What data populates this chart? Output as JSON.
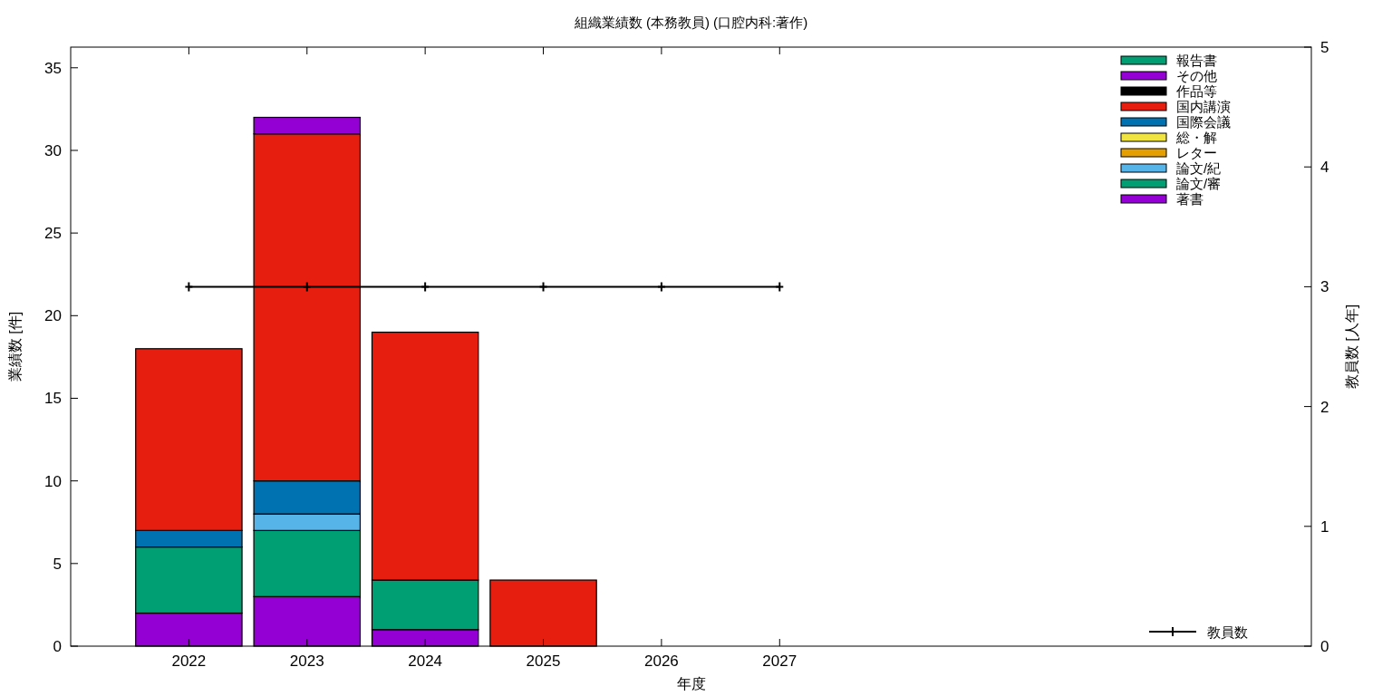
{
  "chart_data": {
    "type": "bar",
    "stacked": true,
    "title": "組織業績数 (本務教員) (口腔内科:著作)",
    "xlabel": "年度",
    "ylabel": "業績数 [件]",
    "y2label": "教員数 [人年]",
    "x": [
      2022,
      2023,
      2024,
      2025,
      2026,
      2027
    ],
    "xlim": [
      2021,
      2031.5
    ],
    "xticks": [
      2022,
      2023,
      2024,
      2025,
      2026,
      2027
    ],
    "series": [
      {
        "name": "著書",
        "color": "#9400d3",
        "values": [
          2,
          3,
          1,
          0,
          0,
          0
        ]
      },
      {
        "name": "論文/審",
        "color": "#009e73",
        "values": [
          4,
          4,
          3,
          0,
          0,
          0
        ]
      },
      {
        "name": "論文/紀",
        "color": "#56b4e9",
        "values": [
          0,
          1,
          0,
          0,
          0,
          0
        ]
      },
      {
        "name": "レター",
        "color": "#e69f00",
        "values": [
          0,
          0,
          0,
          0,
          0,
          0
        ]
      },
      {
        "name": "総・解",
        "color": "#f0e442",
        "values": [
          0,
          0,
          0,
          0,
          0,
          0
        ]
      },
      {
        "name": "国際会議",
        "color": "#0072b2",
        "values": [
          1,
          2,
          0,
          0,
          0,
          0
        ]
      },
      {
        "name": "国内講演",
        "color": "#e51e10",
        "values": [
          11,
          21,
          15,
          4,
          0,
          0
        ]
      },
      {
        "name": "作品等",
        "color": "#000000",
        "values": [
          0,
          0,
          0,
          0,
          0,
          0
        ]
      },
      {
        "name": "その他",
        "color": "#9400d3",
        "values": [
          0,
          1,
          0,
          0,
          0,
          0
        ]
      },
      {
        "name": "報告書",
        "color": "#009e73",
        "values": [
          0,
          0,
          0,
          0,
          0,
          0
        ]
      },
      {
        "name": "教員数",
        "type": "line",
        "axis": "y2",
        "color": "#000000",
        "marker": "cross",
        "values": [
          3,
          3,
          3,
          3,
          3,
          3
        ]
      }
    ],
    "ylim": [
      0,
      36.25
    ],
    "yticks": [
      0,
      5,
      10,
      15,
      20,
      25,
      30,
      35
    ],
    "y2lim": [
      0,
      5
    ],
    "y2ticks": [
      0,
      1,
      2,
      3,
      4,
      5
    ],
    "legend": "top right"
  }
}
